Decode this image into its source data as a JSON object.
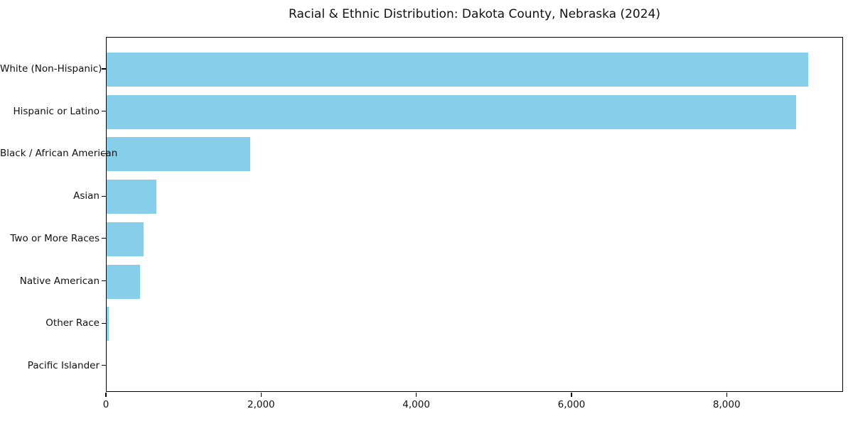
{
  "chart_data": {
    "type": "bar",
    "orientation": "horizontal",
    "title": "Racial & Ethnic Distribution: Dakota County, Nebraska (2024)",
    "categories": [
      "White (Non-Hispanic)",
      "Hispanic or Latino",
      "Black / African American",
      "Asian",
      "Two or More Races",
      "Native American",
      "Other Race",
      "Pacific Islander"
    ],
    "values": [
      9040,
      8890,
      1850,
      640,
      480,
      435,
      30,
      0
    ],
    "xlabel": "",
    "ylabel": "",
    "xlim": [
      0,
      9500
    ],
    "x_ticks": [
      0,
      2000,
      4000,
      6000,
      8000
    ],
    "x_tick_labels": [
      "0",
      "2,000",
      "4,000",
      "6,000",
      "8,000"
    ],
    "bar_color": "#87ceeb",
    "background_color": "#ffffff",
    "spine_color": "#000000",
    "grid": false,
    "legend": null
  }
}
